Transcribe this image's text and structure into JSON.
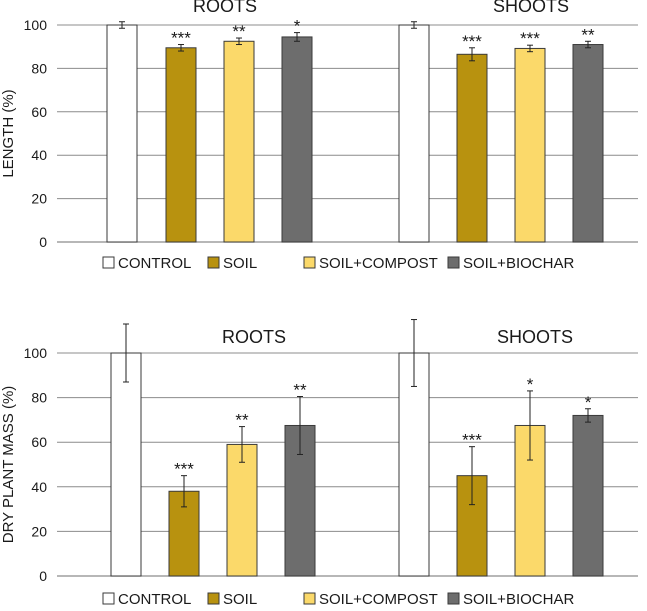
{
  "colors": {
    "control": "#ffffff",
    "soil": "#b8920f",
    "compost": "#fbd96a",
    "biochar": "#6d6d6d",
    "grid": "#8c8c8c",
    "text": "#1a1a1a"
  },
  "legend": [
    "CONTROL",
    "SOIL",
    "SOIL+COMPOST",
    "SOIL+BIOCHAR"
  ],
  "chart_data": [
    {
      "type": "bar",
      "ylabel": "LENGTH (%)",
      "ylim": [
        0,
        100
      ],
      "yticks": [
        0,
        20,
        40,
        60,
        80,
        100
      ],
      "grid": true,
      "legend_position": "bottom",
      "groups": [
        "ROOTS",
        "SHOOTS"
      ],
      "series": [
        {
          "name": "CONTROL",
          "values": [
            100,
            100
          ],
          "errors": [
            1.5,
            1.5
          ],
          "sig": [
            "",
            ""
          ]
        },
        {
          "name": "SOIL",
          "values": [
            89.5,
            86.5
          ],
          "errors": [
            1.5,
            3.0
          ],
          "sig": [
            "***",
            "***"
          ]
        },
        {
          "name": "SOIL+COMPOST",
          "values": [
            92.5,
            89.2
          ],
          "errors": [
            1.5,
            1.5
          ],
          "sig": [
            "**",
            "***"
          ]
        },
        {
          "name": "SOIL+BIOCHAR",
          "values": [
            94.5,
            91.0
          ],
          "errors": [
            2.0,
            1.5
          ],
          "sig": [
            "*",
            "**"
          ]
        }
      ]
    },
    {
      "type": "bar",
      "ylabel": "DRY PLANT MASS (%)",
      "ylim": [
        0,
        100
      ],
      "yticks": [
        0,
        20,
        40,
        60,
        80,
        100
      ],
      "grid": true,
      "legend_position": "bottom",
      "groups": [
        "ROOTS",
        "SHOOTS"
      ],
      "series": [
        {
          "name": "CONTROL",
          "values": [
            100,
            100
          ],
          "errors": [
            13,
            15
          ],
          "sig": [
            "",
            ""
          ]
        },
        {
          "name": "SOIL",
          "values": [
            38,
            45
          ],
          "errors": [
            7,
            13
          ],
          "sig": [
            "***",
            "***"
          ]
        },
        {
          "name": "SOIL+COMPOST",
          "values": [
            59,
            67.5
          ],
          "errors": [
            8,
            15.5
          ],
          "sig": [
            "**",
            "*"
          ]
        },
        {
          "name": "SOIL+BIOCHAR",
          "values": [
            67.5,
            72
          ],
          "errors": [
            13,
            3
          ],
          "sig": [
            "**",
            "*"
          ]
        }
      ]
    }
  ]
}
